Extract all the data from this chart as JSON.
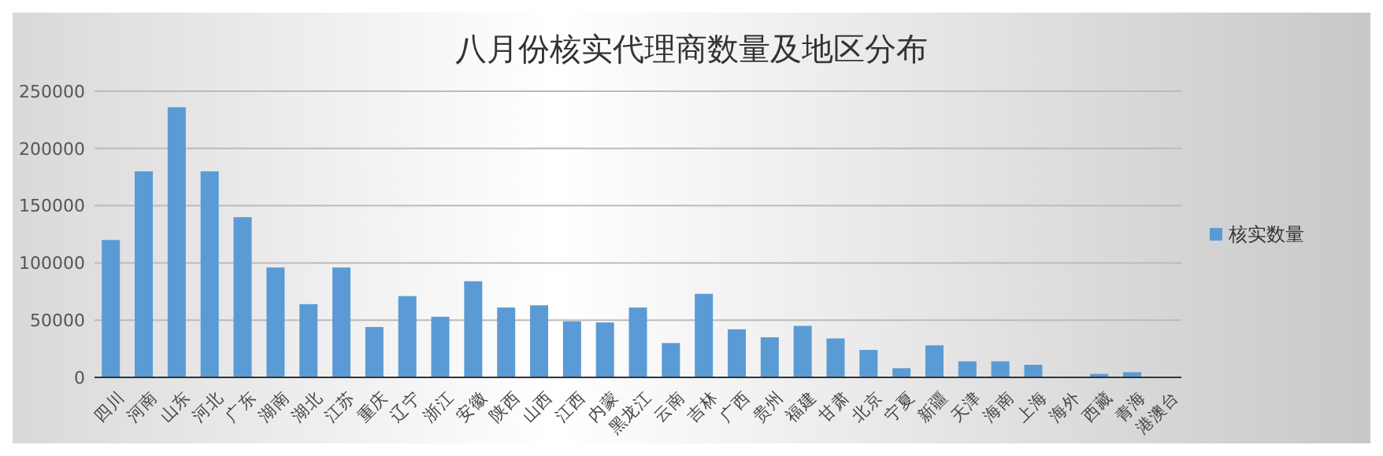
{
  "chart_data": {
    "type": "bar",
    "title": "八月份核实代理商数量及地区分布",
    "categories": [
      "四川",
      "河南",
      "山东",
      "河北",
      "广东",
      "湖南",
      "湖北",
      "江苏",
      "重庆",
      "辽宁",
      "浙江",
      "安徽",
      "陕西",
      "山西",
      "江西",
      "内蒙",
      "黑龙江",
      "云南",
      "吉林",
      "广西",
      "贵州",
      "福建",
      "甘肃",
      "北京",
      "宁夏",
      "新疆",
      "天津",
      "海南",
      "上海",
      "海外",
      "西藏",
      "青海",
      "港澳台"
    ],
    "series": [
      {
        "name": "核实数量",
        "color": "#5b9bd5",
        "values": [
          120000,
          180000,
          236000,
          180000,
          140000,
          96000,
          64000,
          96000,
          44000,
          71000,
          53000,
          84000,
          61000,
          63000,
          49000,
          48000,
          61000,
          30000,
          73000,
          42000,
          35000,
          45000,
          34000,
          24000,
          8000,
          28000,
          14000,
          14000,
          11000,
          0,
          3000,
          4500,
          0
        ]
      }
    ],
    "ylim": [
      0,
      250000
    ],
    "yticks": [
      0,
      50000,
      100000,
      150000,
      200000,
      250000
    ],
    "grid": "y",
    "legend": "right"
  }
}
